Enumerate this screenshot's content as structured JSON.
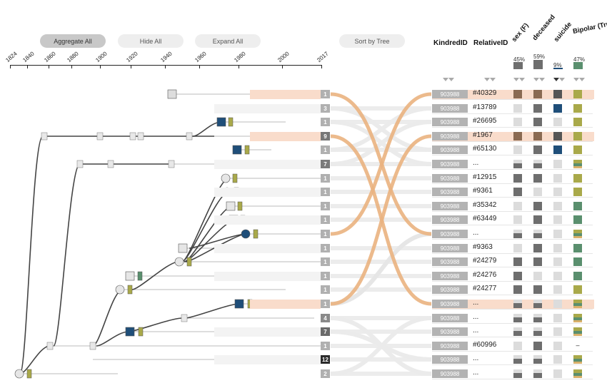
{
  "toolbar": {
    "aggregate_all": "Aggregate All",
    "hide_all": "Hide All",
    "expand_all": "Expand All",
    "sort_by_tree": "Sort by Tree"
  },
  "timeline": {
    "years": [
      "1824",
      "1840",
      "1860",
      "1880",
      "1900",
      "1920",
      "1940",
      "1960",
      "1980",
      "2000",
      "2017"
    ]
  },
  "table": {
    "headers": {
      "kindred_id": "KindredID",
      "relative_id": "RelativeID",
      "sex": "sex (F)",
      "deceased": "deceased",
      "suicide": "suicide",
      "bipolar": "Bipolar (True)"
    },
    "summary": {
      "sex": "45%",
      "deceased": "59%",
      "suicide": "9%",
      "bipolar": "47%"
    },
    "rows": [
      {
        "badge": "1",
        "kindred": "903988",
        "relative": "#40329"
      },
      {
        "badge": "3",
        "kindred": "903988",
        "relative": "#13789"
      },
      {
        "badge": "1",
        "kindred": "903988",
        "relative": "#26695"
      },
      {
        "badge": "9",
        "kindred": "903988",
        "relative": "#1967"
      },
      {
        "badge": "1",
        "kindred": "903988",
        "relative": "#65130"
      },
      {
        "badge": "7",
        "kindred": "903988",
        "relative": "..."
      },
      {
        "badge": "1",
        "kindred": "903988",
        "relative": "#12915"
      },
      {
        "badge": "1",
        "kindred": "903988",
        "relative": "#9361"
      },
      {
        "badge": "1",
        "kindred": "903988",
        "relative": "#35342"
      },
      {
        "badge": "1",
        "kindred": "903988",
        "relative": "#63449"
      },
      {
        "badge": "1",
        "kindred": "903988",
        "relative": "..."
      },
      {
        "badge": "1",
        "kindred": "903988",
        "relative": "#9363"
      },
      {
        "badge": "1",
        "kindred": "903988",
        "relative": "#24279"
      },
      {
        "badge": "1",
        "kindred": "903988",
        "relative": "#24276"
      },
      {
        "badge": "1",
        "kindred": "903988",
        "relative": "#24277"
      },
      {
        "badge": "1",
        "kindred": "903988",
        "relative": "..."
      },
      {
        "badge": "4",
        "kindred": "903988",
        "relative": "..."
      },
      {
        "badge": "7",
        "kindred": "903988",
        "relative": "..."
      },
      {
        "badge": "1",
        "kindred": "903988",
        "relative": "#60996"
      },
      {
        "badge": "12",
        "kindred": "903988",
        "relative": "..."
      },
      {
        "badge": "2",
        "kindred": "903988",
        "relative": "..."
      }
    ],
    "bipolar_missing_mark": "–"
  },
  "colors": {
    "highlight": "#f9dccb",
    "link_orange": "#eab27f",
    "suicide_blue": "#1f4e79",
    "bipolar_green": "#5a8f6e",
    "bipolar_olive": "#a9a94a",
    "cell_dark": "#6e6e6e",
    "cell_light": "#dcdcdc"
  }
}
